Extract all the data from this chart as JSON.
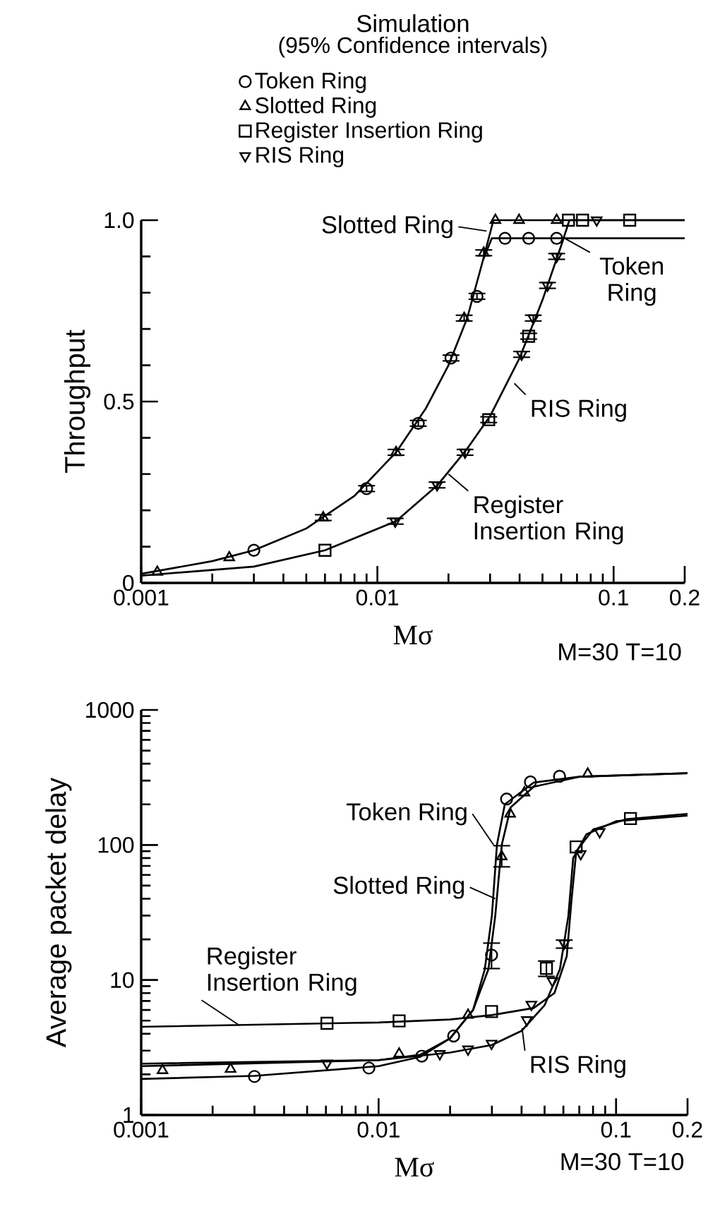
{
  "chart_data": [
    {
      "type": "scatter",
      "title": "Simulation",
      "subtitle": "(95% Confidence intervals)",
      "xlabel": "Mσ",
      "ylabel": "Throughput",
      "log": "x",
      "legend": "top",
      "xlim": [
        0.001,
        0.2
      ],
      "ylim": [
        0,
        1
      ],
      "xticks": [
        0.001,
        {
          "value": 0.002,
          "label": null
        },
        {
          "value": 0.003,
          "label": null
        },
        {
          "value": 0.004,
          "label": null
        },
        {
          "value": 0.005,
          "label": null
        },
        {
          "value": 0.006,
          "label": null
        },
        {
          "value": 0.007,
          "label": null
        },
        {
          "value": 0.008,
          "label": null
        },
        {
          "value": 0.009,
          "label": null
        },
        0.01,
        {
          "value": 0.02,
          "label": null
        },
        {
          "value": 0.03,
          "label": null
        },
        {
          "value": 0.04,
          "label": null
        },
        {
          "value": 0.05,
          "label": null
        },
        {
          "value": 0.06,
          "label": null
        },
        {
          "value": 0.07,
          "label": null
        },
        {
          "value": 0.08,
          "label": null
        },
        {
          "value": 0.09,
          "label": null
        },
        0.1,
        0.2
      ],
      "yticks": [
        0,
        {
          "value": 0.1,
          "label": null
        },
        {
          "value": 0.2,
          "label": null
        },
        {
          "value": 0.3,
          "label": null
        },
        {
          "value": 0.4,
          "label": null
        },
        0.5,
        {
          "value": 0.6,
          "label": null
        },
        {
          "value": 0.7,
          "label": null
        },
        {
          "value": 0.8,
          "label": null
        },
        {
          "value": 0.9,
          "label": null
        },
        {
          "value": 1,
          "label": "1.0"
        }
      ],
      "series": [
        {
          "name": "Token Ring",
          "marker": "circle",
          "color": "#000000",
          "x": [
            0.003,
            0.009,
            0.0149,
            0.0205,
            0.0264,
            0.0347,
            0.0437,
            0.0574
          ],
          "values": [
            0.09,
            0.26,
            0.44,
            0.62,
            0.79,
            0.95,
            0.95,
            0.95
          ],
          "errors": [
            null,
            0.01,
            0.01,
            0.01,
            0.01,
            null,
            null,
            null
          ]
        },
        {
          "name": "Slotted Ring",
          "marker": "triangle",
          "color": "#000000",
          "x": [
            0.00117,
            0.00236,
            0.0059,
            0.012,
            0.0233,
            0.0282,
            0.0316,
            0.0398,
            0.0574
          ],
          "values": [
            0.03,
            0.07,
            0.18,
            0.36,
            0.73,
            0.91,
            1.0,
            1.0,
            1.0
          ],
          "errors": [
            null,
            null,
            0.01,
            0.01,
            0.01,
            0.01,
            null,
            null,
            null
          ]
        },
        {
          "name": "Register Insertion Ring",
          "marker": "square",
          "color": "#000000",
          "x": [
            0.006,
            0.0296,
            0.0437,
            0.0644,
            0.0739,
            0.117
          ],
          "values": [
            0.09,
            0.45,
            0.68,
            1.0,
            1.0,
            1.0
          ],
          "errors": [
            null,
            0.01,
            0.01,
            null,
            null,
            null
          ]
        },
        {
          "name": "RIS Ring",
          "marker": "triangle-down",
          "color": "#000000",
          "x": [
            0.0119,
            0.0179,
            0.0235,
            0.0408,
            0.0457,
            0.0525,
            0.0574,
            0.0848
          ],
          "values": [
            0.17,
            0.27,
            0.36,
            0.63,
            0.73,
            0.82,
            0.9,
            1.0
          ],
          "errors": [
            0.01,
            0.01,
            0.01,
            0.01,
            0.01,
            0.01,
            0.01,
            null
          ]
        },
        {
          "type": "line",
          "marker": "none",
          "color": "#000000",
          "x": [
            0.001,
            0.002,
            0.003,
            0.005,
            0.008,
            0.012,
            0.016,
            0.02,
            0.024,
            0.028,
            0.031,
            0.2
          ],
          "values": [
            0.025,
            0.06,
            0.09,
            0.15,
            0.24,
            0.36,
            0.48,
            0.6,
            0.73,
            0.89,
            1.0,
            1.0
          ]
        },
        {
          "type": "line",
          "marker": "none",
          "color": "#000000",
          "x": [
            0.028,
            0.0305,
            0.2
          ],
          "values": [
            0.89,
            0.95,
            0.95
          ]
        },
        {
          "type": "line",
          "marker": "none",
          "color": "#000000",
          "x": [
            0.001,
            0.003,
            0.006,
            0.012,
            0.018,
            0.024,
            0.03,
            0.04,
            0.05,
            0.06,
            0.065,
            0.2
          ],
          "values": [
            0.02,
            0.045,
            0.09,
            0.17,
            0.27,
            0.37,
            0.46,
            0.62,
            0.78,
            0.93,
            1.0,
            1.0
          ]
        }
      ],
      "annotations": [
        {
          "text": "Slotted Ring",
          "x": 0.029,
          "y": 0.97
        },
        {
          "text": "Token Ring",
          "x": 0.062,
          "y": 0.95
        },
        {
          "text": "RIS Ring",
          "x": 0.038,
          "y": 0.55
        },
        {
          "text": "Register Insertion Ring",
          "x": 0.02,
          "y": 0.3
        },
        "M=30 T=10"
      ]
    },
    {
      "type": "scatter",
      "xlabel": "Mσ",
      "ylabel": "Average packet delay",
      "log": "xy",
      "xlim": [
        0.001,
        0.2
      ],
      "ylim": [
        1,
        1000
      ],
      "xticks": [
        0.001,
        {
          "value": 0.002,
          "label": null
        },
        {
          "value": 0.003,
          "label": null
        },
        {
          "value": 0.004,
          "label": null
        },
        {
          "value": 0.005,
          "label": null
        },
        {
          "value": 0.006,
          "label": null
        },
        {
          "value": 0.007,
          "label": null
        },
        {
          "value": 0.008,
          "label": null
        },
        {
          "value": 0.009,
          "label": null
        },
        0.01,
        {
          "value": 0.02,
          "label": null
        },
        {
          "value": 0.03,
          "label": null
        },
        {
          "value": 0.04,
          "label": null
        },
        {
          "value": 0.05,
          "label": null
        },
        {
          "value": 0.06,
          "label": null
        },
        {
          "value": 0.07,
          "label": null
        },
        {
          "value": 0.08,
          "label": null
        },
        {
          "value": 0.09,
          "label": null
        },
        0.1,
        0.2
      ],
      "yticks": [
        1,
        {
          "value": 2,
          "label": null
        },
        {
          "value": 3,
          "label": null
        },
        {
          "value": 4,
          "label": null
        },
        {
          "value": 5,
          "label": null
        },
        {
          "value": 6,
          "label": null
        },
        {
          "value": 7,
          "label": null
        },
        {
          "value": 8,
          "label": null
        },
        {
          "value": 9,
          "label": null
        },
        10,
        {
          "value": 20,
          "label": null
        },
        {
          "value": 30,
          "label": null
        },
        {
          "value": 40,
          "label": null
        },
        {
          "value": 50,
          "label": null
        },
        {
          "value": 60,
          "label": null
        },
        {
          "value": 70,
          "label": null
        },
        {
          "value": 80,
          "label": null
        },
        {
          "value": 90,
          "label": null
        },
        100,
        {
          "value": 200,
          "label": null
        },
        {
          "value": 300,
          "label": null
        },
        {
          "value": 400,
          "label": null
        },
        {
          "value": 500,
          "label": null
        },
        {
          "value": 600,
          "label": null
        },
        {
          "value": 700,
          "label": null
        },
        {
          "value": 800,
          "label": null
        },
        {
          "value": 900,
          "label": null
        },
        1000
      ],
      "series": [
        {
          "marker": "circle",
          "color": "#000000",
          "x": [
            0.003,
            0.0091,
            0.0152,
            0.0207,
            0.0299,
            0.0346,
            0.0436,
            0.0578
          ],
          "values": [
            1.93,
            2.23,
            2.73,
            3.85,
            15.3,
            219,
            293,
            323
          ],
          "errors": [
            null,
            null,
            null,
            null,
            [
              12,
              19
            ],
            null,
            null,
            null
          ]
        },
        {
          "marker": "triangle",
          "color": "#000000",
          "x": [
            0.00123,
            0.00238,
            0.0122,
            0.0238,
            0.033,
            0.0358,
            0.0411,
            0.076
          ],
          "values": [
            2.14,
            2.19,
            2.84,
            5.5,
            82,
            170,
            244,
            336
          ],
          "errors": [
            null,
            null,
            null,
            null,
            [
              68,
              100
            ],
            null,
            null,
            null
          ]
        },
        {
          "marker": "square",
          "color": "#000000",
          "x": [
            0.00606,
            0.0122,
            0.0299,
            0.0509,
            0.0679,
            0.115
          ],
          "values": [
            4.78,
            4.98,
            5.84,
            12.2,
            96.8,
            157
          ],
          "errors": [
            null,
            null,
            null,
            [
              10.5,
              14
            ],
            null,
            null
          ]
        },
        {
          "marker": "triangle-down",
          "color": "#000000",
          "x": [
            0.00606,
            0.0181,
            0.0238,
            0.0299,
            0.0421,
            0.044,
            0.054,
            0.0605,
            0.071,
            0.0853
          ],
          "values": [
            2.42,
            2.84,
            3.07,
            3.39,
            5.06,
            6.59,
            9.84,
            18.7,
            86,
            125
          ],
          "errors": [
            null,
            null,
            null,
            null,
            null,
            null,
            null,
            [
              17,
              20
            ],
            null,
            null
          ]
        },
        {
          "type": "line",
          "marker": "none",
          "color": "#000000",
          "x": [
            0.001,
            0.003,
            0.01,
            0.015,
            0.02,
            0.025,
            0.028,
            0.03,
            0.0315,
            0.034,
            0.045,
            0.07,
            0.2
          ],
          "values": [
            1.85,
            1.95,
            2.3,
            2.7,
            3.7,
            6,
            12,
            30,
            100,
            200,
            290,
            320,
            340
          ]
        },
        {
          "type": "line",
          "marker": "none",
          "color": "#000000",
          "x": [
            0.001,
            0.01,
            0.015,
            0.02,
            0.025,
            0.029,
            0.031,
            0.033,
            0.036,
            0.045,
            0.07,
            0.2
          ],
          "values": [
            2.3,
            2.55,
            2.8,
            3.7,
            6,
            12,
            30,
            100,
            190,
            270,
            320,
            340
          ]
        },
        {
          "type": "line",
          "marker": "none",
          "color": "#000000",
          "x": [
            0.001,
            0.01,
            0.02,
            0.03,
            0.045,
            0.055,
            0.062,
            0.065,
            0.068,
            0.08,
            0.11,
            0.2
          ],
          "values": [
            4.5,
            4.85,
            5.1,
            5.5,
            6.2,
            8,
            15,
            40,
            90,
            130,
            155,
            170
          ]
        },
        {
          "type": "line",
          "marker": "none",
          "color": "#000000",
          "x": [
            0.001,
            0.01,
            0.02,
            0.03,
            0.04,
            0.05,
            0.058,
            0.063,
            0.066,
            0.075,
            0.1,
            0.2
          ],
          "values": [
            2.4,
            2.55,
            2.9,
            3.3,
            4.2,
            6.5,
            12,
            30,
            80,
            120,
            150,
            165
          ]
        }
      ],
      "annotations": [
        {
          "text": "Token Ring",
          "x": 0.0305,
          "y": 100
        },
        {
          "text": "Slotted Ring",
          "x": 0.031,
          "y": 40
        },
        {
          "text": "Register Insertion Ring",
          "x": 0.0026,
          "y": 4.6
        },
        {
          "text": "RIS Ring",
          "x": 0.0402,
          "y": 4.4
        },
        "M=30 T=10"
      ]
    }
  ]
}
